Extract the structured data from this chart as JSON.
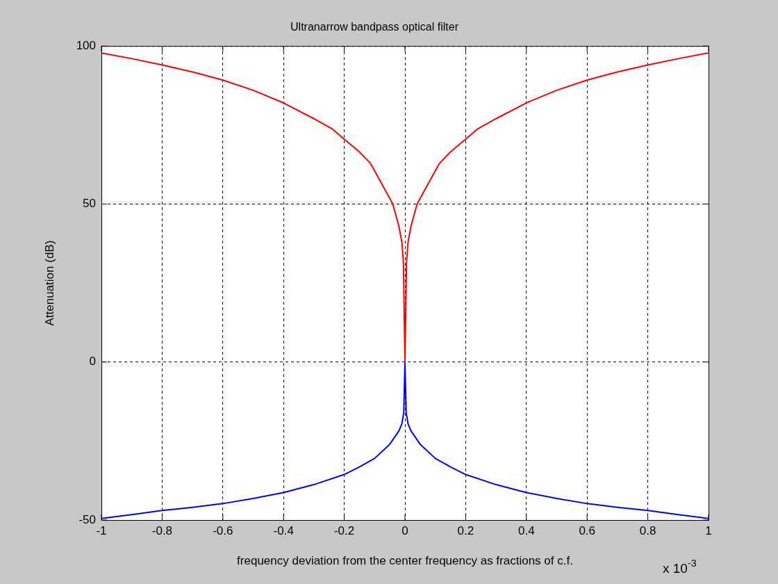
{
  "chart_data": {
    "type": "line",
    "title": "Ultranarrow bandpass optical filter",
    "xlabel": "frequency deviation from the center frequency as fractions of c.f.",
    "ylabel": "Attenuation (dB)",
    "annotations": [
      "x 10$^{-3}$"
    ],
    "xlim": [
      -1,
      1
    ],
    "xticks": [
      -1,
      -0.8,
      -0.6,
      -0.4,
      -0.2,
      0,
      0.2,
      0.4,
      0.6,
      0.8,
      1
    ],
    "ylim": [
      -50,
      100
    ],
    "yticks": [
      -50,
      0,
      50,
      100
    ],
    "grid": true,
    "legend": false,
    "marker": "none",
    "line_style": "solid",
    "series": [
      {
        "color": "#ff0000",
        "x": [
          -1,
          -0.9,
          -0.8,
          -0.7,
          -0.6,
          -0.5,
          -0.4,
          -0.3,
          -0.24,
          -0.2,
          -0.15,
          -0.114,
          -0.077,
          -0.04,
          -0.02,
          -0.01,
          -0.005,
          0,
          0.005,
          0.01,
          0.02,
          0.04,
          0.077,
          0.114,
          0.15,
          0.2,
          0.24,
          0.3,
          0.4,
          0.5,
          0.6,
          0.7,
          0.8,
          0.9,
          1
        ],
        "values": [
          97.8,
          96,
          94,
          91.8,
          89.2,
          86,
          82,
          77,
          73.8,
          70.5,
          66.5,
          62.9,
          56.5,
          50,
          43,
          37.8,
          31.4,
          0,
          31.4,
          37.8,
          43,
          50,
          56.5,
          62.9,
          66.5,
          70.5,
          73.8,
          77,
          82,
          86,
          89.2,
          91.8,
          94,
          96,
          97.8
        ]
      },
      {
        "color": "#0000ff",
        "x": [
          -1,
          -0.9,
          -0.8,
          -0.7,
          -0.6,
          -0.5,
          -0.4,
          -0.3,
          -0.2,
          -0.15,
          -0.1,
          -0.05,
          -0.02,
          -0.01,
          -0.004,
          0,
          0.004,
          0.01,
          0.02,
          0.05,
          0.1,
          0.15,
          0.2,
          0.3,
          0.4,
          0.5,
          0.6,
          0.7,
          0.8,
          0.9,
          1
        ],
        "values": [
          -49.5,
          -48.3,
          -47,
          -46,
          -44.8,
          -43.2,
          -41.3,
          -38.8,
          -35.6,
          -33.2,
          -30.5,
          -26,
          -21.8,
          -19.5,
          -16,
          0,
          -16,
          -19.5,
          -21.8,
          -26,
          -30.5,
          -33.2,
          -35.6,
          -38.8,
          -41.3,
          -43.2,
          -44.8,
          -46,
          -47,
          -48.3,
          -49.5
        ]
      }
    ]
  }
}
